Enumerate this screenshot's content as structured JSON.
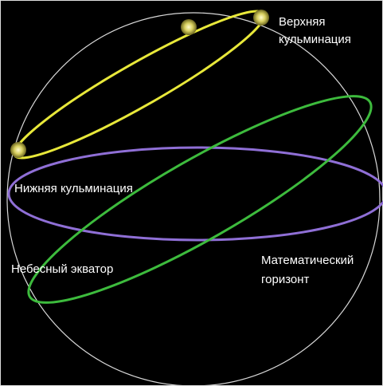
{
  "labels": {
    "upper_culmination": [
      "Верхняя",
      "кульминация"
    ],
    "lower_culmination": "Нижняя кульминация",
    "celestial_equator": "Небесный экватор",
    "math_horizon": [
      "Математический",
      "горизонт"
    ]
  }
}
